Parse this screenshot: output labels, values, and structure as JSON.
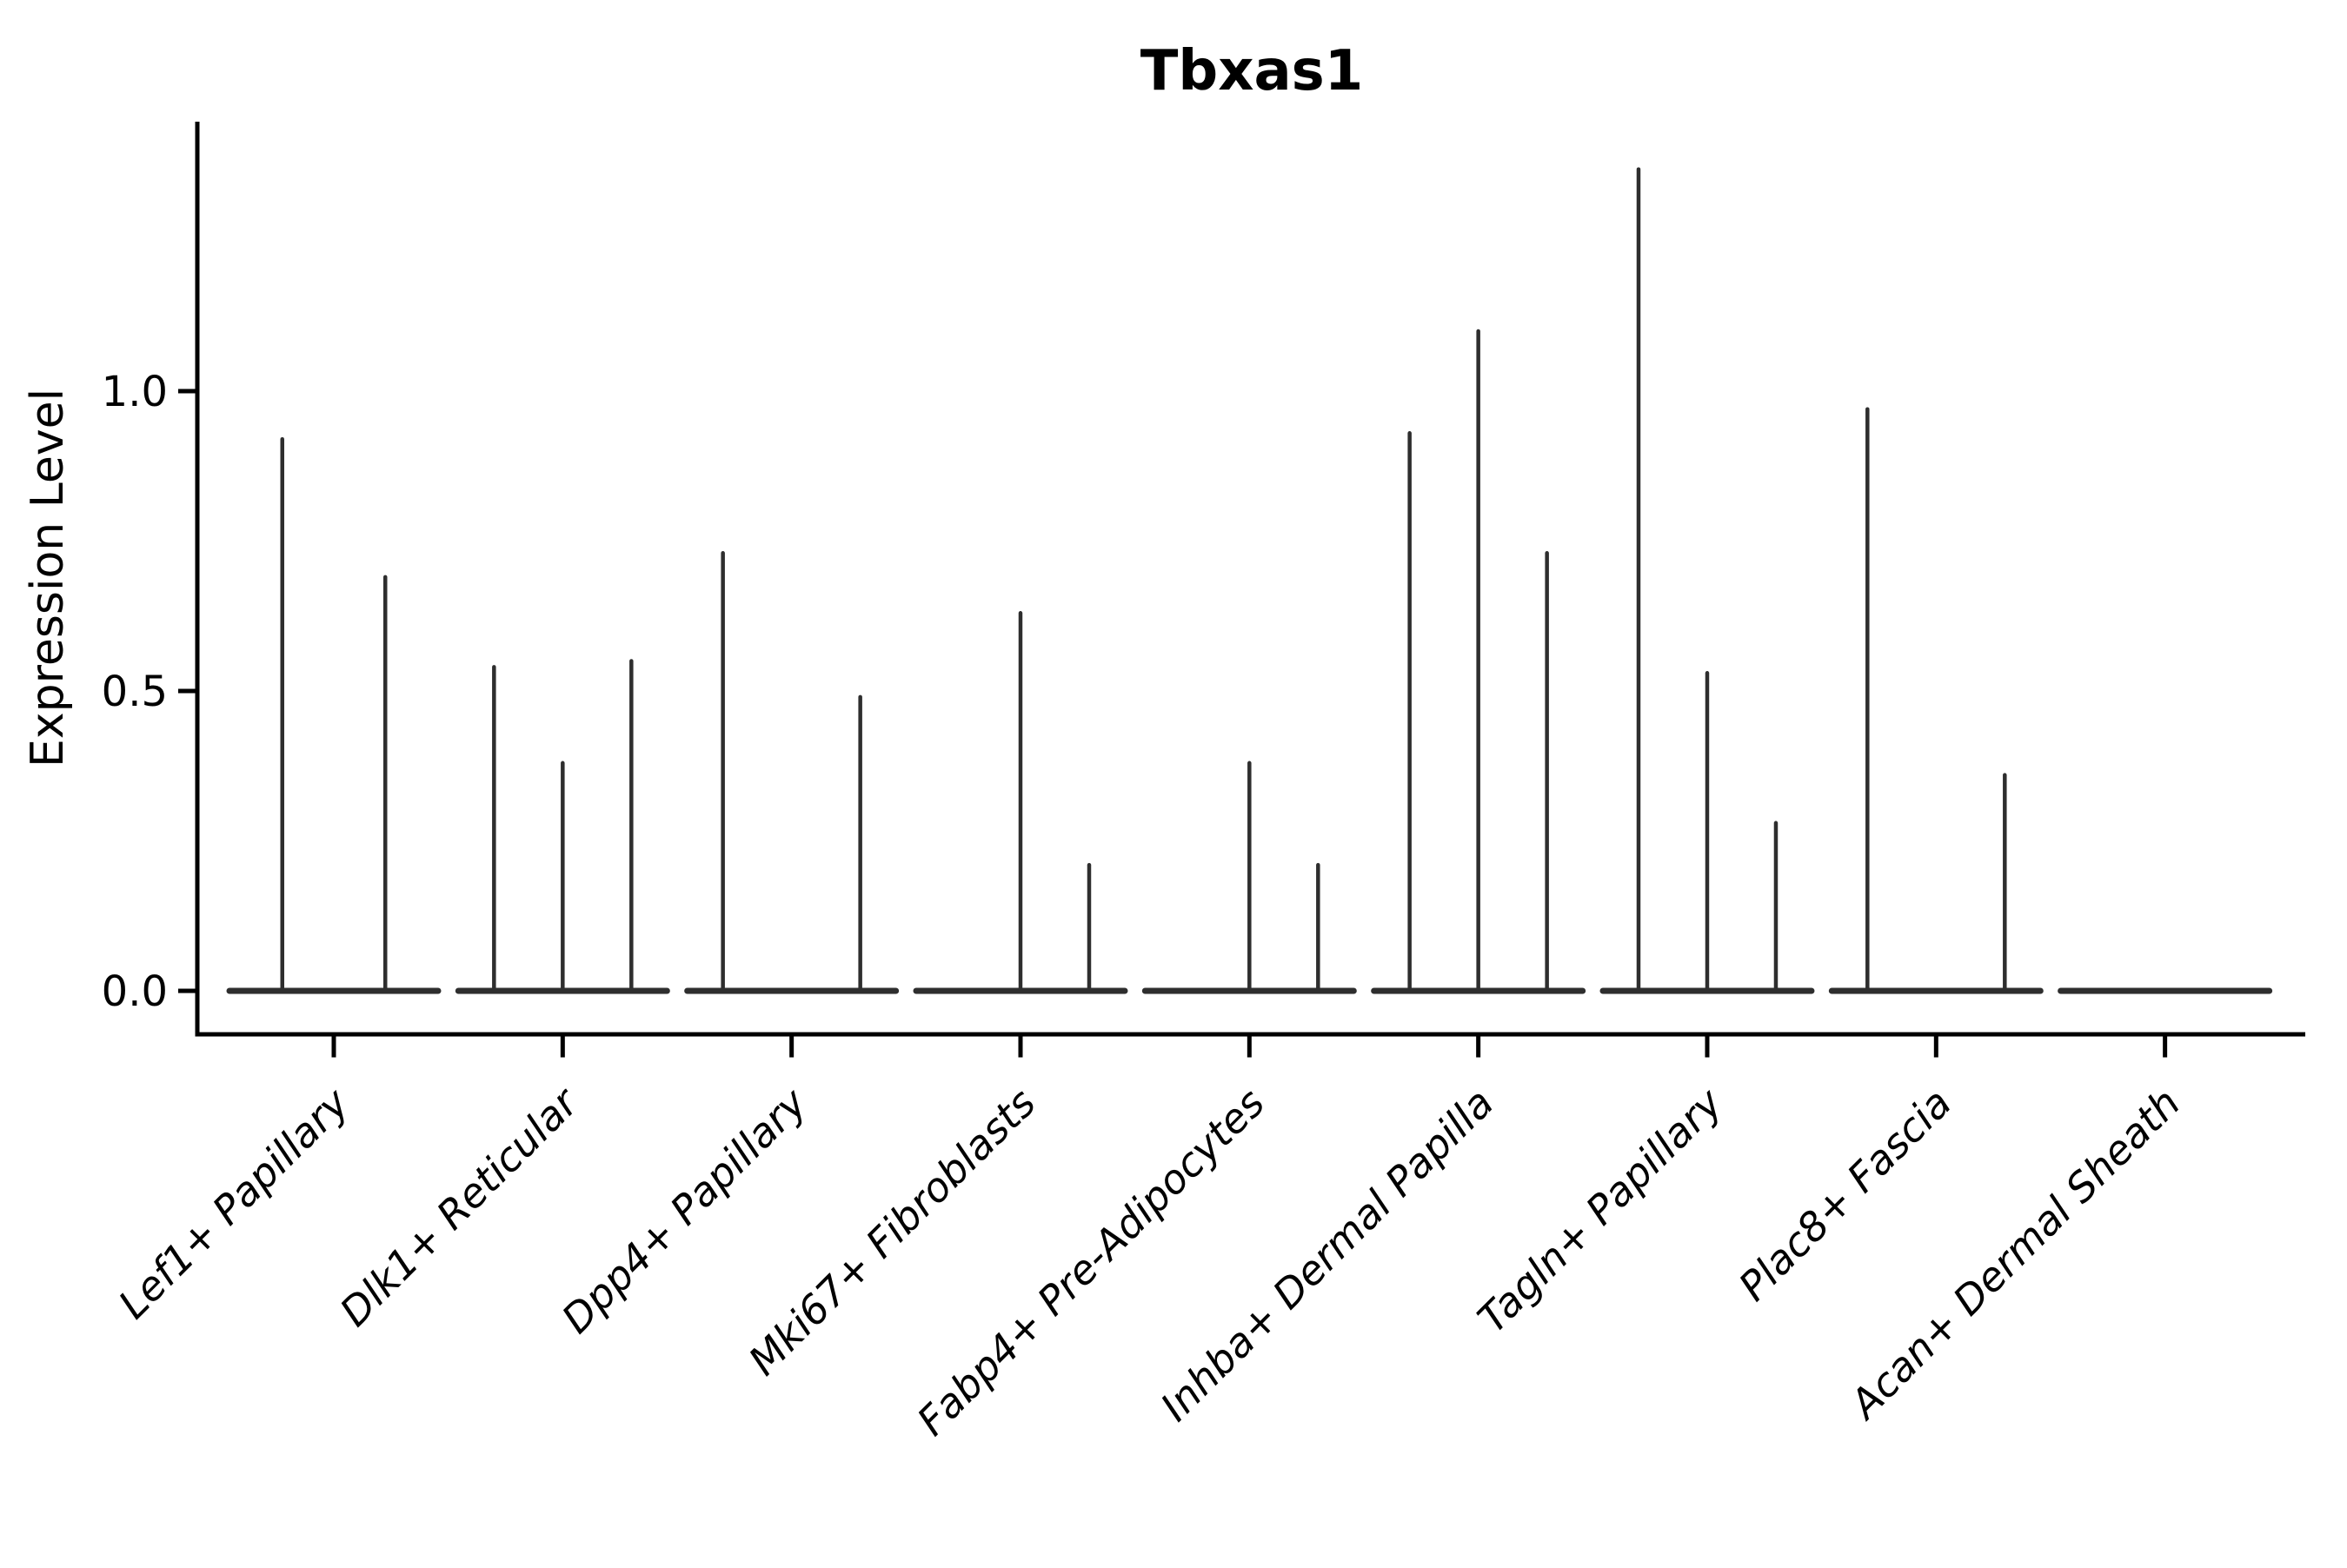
{
  "title": "Tbxas1",
  "chart_data": {
    "type": "violin",
    "title": "Tbxas1",
    "ylabel": "Expression Level",
    "xlabel": "",
    "ytick_labels": [
      "0.0",
      "0.5",
      "1.0"
    ],
    "ytick_values": [
      0.0,
      0.5,
      1.0
    ],
    "ylim": [
      -0.07,
      1.45
    ],
    "grid": false,
    "legend_position": "none",
    "categories": [
      "Lef1+ Papillary",
      "Dlk1+ Reticular",
      "Dpp4+ Papillary",
      "Mki67+ Fibroblasts",
      "Fabp4+ Pre-Adipocytes",
      "Inhba+ Dermal Papilla",
      "Tagln+ Papillary",
      "Plac8+ Fascia",
      "Acan+ Dermal Sheath"
    ],
    "groups": [
      {
        "category": "Lef1+ Papillary",
        "violin_max": [
          0.92,
          0.69
        ]
      },
      {
        "category": "Dlk1+ Reticular",
        "violin_max": [
          0.54,
          0.38,
          0.55
        ]
      },
      {
        "category": "Dpp4+ Papillary",
        "violin_max": [
          0.73,
          0.0,
          0.49
        ]
      },
      {
        "category": "Mki67+ Fibroblasts",
        "violin_max": [
          0.0,
          0.63,
          0.21
        ]
      },
      {
        "category": "Fabp4+ Pre-Adipocytes",
        "violin_max": [
          0.0,
          0.38,
          0.21
        ]
      },
      {
        "category": "Inhba+ Dermal Papilla",
        "violin_max": [
          0.93,
          1.1,
          0.73
        ]
      },
      {
        "category": "Tagln+ Papillary",
        "violin_max": [
          1.37,
          0.53,
          0.28
        ]
      },
      {
        "category": "Plac8+ Fascia",
        "violin_max": [
          0.97,
          0.0,
          0.36
        ]
      },
      {
        "category": "Acan+ Dermal Sheath",
        "violin_max": [
          0.0,
          0.0,
          0.0
        ]
      }
    ],
    "colors": {
      "violin_line": "#2e2e2e",
      "axis": "#000000",
      "background": "#ffffff"
    }
  }
}
